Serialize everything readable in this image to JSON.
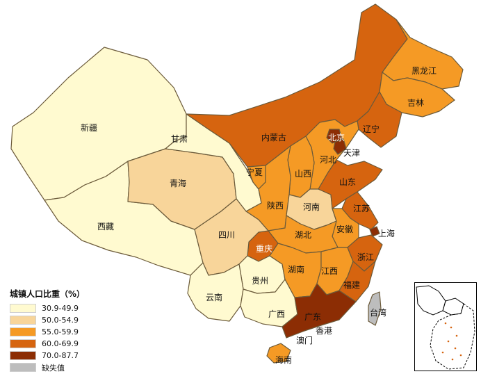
{
  "colors": {
    "c1": "#FFFAD0",
    "c2": "#F8D59A",
    "c3": "#F59A25",
    "c4": "#D6640F",
    "c5": "#8C2D04",
    "c6": "#BDBDBD",
    "border": "#6b5a3a"
  },
  "legend": {
    "title": "城镇人口比重（%）",
    "items": [
      {
        "label": "30.9-49.9",
        "color": "#FFFAD0"
      },
      {
        "label": "50.0-54.9",
        "color": "#F8D59A"
      },
      {
        "label": "55.0-59.9",
        "color": "#F59A25"
      },
      {
        "label": "60.0-69.9",
        "color": "#D6640F"
      },
      {
        "label": "70.0-87.7",
        "color": "#8C2D04"
      },
      {
        "label": "缺失值",
        "color": "#BDBDBD"
      }
    ]
  },
  "provinces": [
    {
      "name": "新疆",
      "class": "30.9-49.9"
    },
    {
      "name": "西藏",
      "class": "30.9-49.9"
    },
    {
      "name": "甘肃",
      "class": "30.9-49.9"
    },
    {
      "name": "青海",
      "class": "50.0-54.9"
    },
    {
      "name": "四川",
      "class": "50.0-54.9"
    },
    {
      "name": "云南",
      "class": "30.9-49.9"
    },
    {
      "name": "贵州",
      "class": "30.9-49.9"
    },
    {
      "name": "广西",
      "class": "30.9-49.9"
    },
    {
      "name": "内蒙古",
      "class": "60.0-69.9"
    },
    {
      "name": "黑龙江",
      "class": "55.0-59.9"
    },
    {
      "name": "吉林",
      "class": "55.0-59.9"
    },
    {
      "name": "辽宁",
      "class": "60.0-69.9"
    },
    {
      "name": "北京",
      "class": "70.0-87.7"
    },
    {
      "name": "天津",
      "class": "70.0-87.7"
    },
    {
      "name": "河北",
      "class": "55.0-59.9"
    },
    {
      "name": "山西",
      "class": "55.0-59.9"
    },
    {
      "name": "宁夏",
      "class": "55.0-59.9"
    },
    {
      "name": "陕西",
      "class": "55.0-59.9"
    },
    {
      "name": "河南",
      "class": "50.0-54.9"
    },
    {
      "name": "山东",
      "class": "60.0-69.9"
    },
    {
      "name": "江苏",
      "class": "60.0-69.9"
    },
    {
      "name": "安徽",
      "class": "55.0-59.9"
    },
    {
      "name": "湖北",
      "class": "55.0-59.9"
    },
    {
      "name": "重庆",
      "class": "60.0-69.9"
    },
    {
      "name": "湖南",
      "class": "55.0-59.9"
    },
    {
      "name": "江西",
      "class": "55.0-59.9"
    },
    {
      "name": "浙江",
      "class": "60.0-69.9"
    },
    {
      "name": "上海",
      "class": "70.0-87.7"
    },
    {
      "name": "福建",
      "class": "60.0-69.9"
    },
    {
      "name": "广东",
      "class": "70.0-87.7"
    },
    {
      "name": "海南",
      "class": "55.0-59.9"
    },
    {
      "name": "台湾",
      "class": "缺失值"
    },
    {
      "name": "香港",
      "class": ""
    },
    {
      "name": "澳门",
      "class": ""
    }
  ]
}
